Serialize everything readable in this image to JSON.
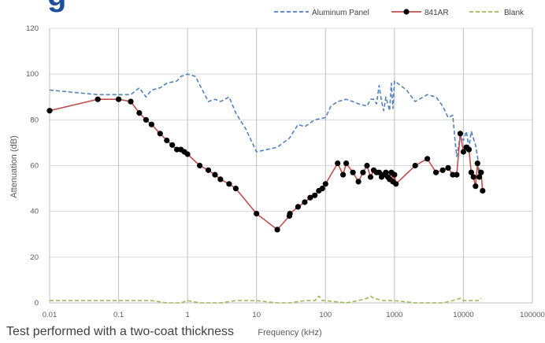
{
  "heading_fragment": "g",
  "caption": "Test performed with a two-coat thickness",
  "colors": {
    "aluminum": "#4f81bd",
    "ar841": "#c0504d",
    "marker": "#000000",
    "blank": "#9bbb59",
    "grid": "#d9d9d9"
  },
  "chart_data": {
    "type": "line",
    "title": "",
    "xlabel": "Frequency (kHz)",
    "ylabel": "Attenuation (dB)",
    "xscale": "log",
    "xlim": [
      0.01,
      100000
    ],
    "ylim": [
      0,
      120
    ],
    "x_ticks": [
      "0.01",
      "0.1",
      "1",
      "10",
      "100",
      "1000",
      "10000",
      "100000"
    ],
    "y_ticks": [
      "0",
      "20",
      "40",
      "60",
      "80",
      "100",
      "120"
    ],
    "grid": "vertical and horizontal",
    "legend_position": "top-right",
    "legend": [
      "Aluminum Panel",
      "841AR",
      "Blank"
    ],
    "series": [
      {
        "name": "Aluminum Panel",
        "style": "dashed",
        "points": [
          [
            0.01,
            93
          ],
          [
            0.05,
            91
          ],
          [
            0.1,
            91
          ],
          [
            0.15,
            91
          ],
          [
            0.2,
            94
          ],
          [
            0.25,
            90
          ],
          [
            0.3,
            93
          ],
          [
            0.4,
            94
          ],
          [
            0.5,
            96
          ],
          [
            0.7,
            97
          ],
          [
            0.8,
            99
          ],
          [
            1,
            100
          ],
          [
            1.3,
            99
          ],
          [
            2,
            88
          ],
          [
            2.5,
            89
          ],
          [
            3,
            88
          ],
          [
            4,
            90
          ],
          [
            5,
            83
          ],
          [
            7,
            76
          ],
          [
            10,
            66
          ],
          [
            20,
            68
          ],
          [
            30,
            72
          ],
          [
            40,
            78
          ],
          [
            50,
            77
          ],
          [
            70,
            80
          ],
          [
            100,
            81
          ],
          [
            120,
            86
          ],
          [
            150,
            88
          ],
          [
            200,
            89
          ],
          [
            250,
            88
          ],
          [
            300,
            87
          ],
          [
            400,
            86
          ],
          [
            450,
            89
          ],
          [
            500,
            89
          ],
          [
            550,
            87
          ],
          [
            600,
            95
          ],
          [
            650,
            88
          ],
          [
            700,
            84
          ],
          [
            750,
            90
          ],
          [
            800,
            87
          ],
          [
            850,
            84
          ],
          [
            900,
            96
          ],
          [
            950,
            85
          ],
          [
            1000,
            97
          ],
          [
            1500,
            93
          ],
          [
            2000,
            88
          ],
          [
            3000,
            91
          ],
          [
            4000,
            90
          ],
          [
            5000,
            86
          ],
          [
            6000,
            81
          ],
          [
            7000,
            82
          ],
          [
            7500,
            72
          ],
          [
            8000,
            64
          ],
          [
            9000,
            73
          ],
          [
            10000,
            71
          ],
          [
            11000,
            75
          ],
          [
            12000,
            68
          ],
          [
            13000,
            75
          ],
          [
            15000,
            69
          ],
          [
            16000,
            64
          ],
          [
            17000,
            58
          ],
          [
            18000,
            55
          ]
        ]
      },
      {
        "name": "841AR",
        "style": "solid-markers",
        "points": [
          [
            0.01,
            84
          ],
          [
            0.05,
            89
          ],
          [
            0.1,
            89
          ],
          [
            0.15,
            88
          ],
          [
            0.2,
            83
          ],
          [
            0.25,
            80
          ],
          [
            0.3,
            78
          ],
          [
            0.4,
            74
          ],
          [
            0.5,
            71
          ],
          [
            0.6,
            69
          ],
          [
            0.7,
            67
          ],
          [
            0.8,
            67
          ],
          [
            0.9,
            66
          ],
          [
            1,
            65
          ],
          [
            1.5,
            60
          ],
          [
            2,
            58
          ],
          [
            2.5,
            56
          ],
          [
            3,
            54
          ],
          [
            4,
            52
          ],
          [
            5,
            50
          ],
          [
            10,
            39
          ],
          [
            20,
            32
          ],
          [
            30,
            38
          ],
          [
            30.5,
            39
          ],
          [
            40,
            42
          ],
          [
            50,
            44
          ],
          [
            60,
            46
          ],
          [
            70,
            47
          ],
          [
            80,
            49
          ],
          [
            90,
            50
          ],
          [
            100,
            52
          ],
          [
            150,
            61
          ],
          [
            180,
            56
          ],
          [
            200,
            61
          ],
          [
            250,
            57
          ],
          [
            300,
            53
          ],
          [
            350,
            57
          ],
          [
            400,
            60
          ],
          [
            450,
            55
          ],
          [
            500,
            58
          ],
          [
            550,
            57
          ],
          [
            600,
            57
          ],
          [
            650,
            55
          ],
          [
            700,
            56
          ],
          [
            750,
            57
          ],
          [
            800,
            55
          ],
          [
            850,
            54
          ],
          [
            900,
            57
          ],
          [
            950,
            53
          ],
          [
            1000,
            56
          ],
          [
            1050,
            52
          ],
          [
            2000,
            60
          ],
          [
            3000,
            63
          ],
          [
            4000,
            57
          ],
          [
            5000,
            58
          ],
          [
            6000,
            59
          ],
          [
            7000,
            56
          ],
          [
            8000,
            56
          ],
          [
            9000,
            74
          ],
          [
            10000,
            66
          ],
          [
            11000,
            68
          ],
          [
            12000,
            67
          ],
          [
            13000,
            57
          ],
          [
            14000,
            55
          ],
          [
            15000,
            51
          ],
          [
            16000,
            61
          ],
          [
            17000,
            55
          ],
          [
            18000,
            57
          ],
          [
            19000,
            49
          ]
        ]
      },
      {
        "name": "Blank",
        "style": "dashed",
        "points": [
          [
            0.01,
            1
          ],
          [
            0.3,
            1
          ],
          [
            0.5,
            0
          ],
          [
            0.8,
            0
          ],
          [
            1,
            1
          ],
          [
            1.5,
            0
          ],
          [
            3,
            0
          ],
          [
            5,
            1
          ],
          [
            10,
            1
          ],
          [
            20,
            0
          ],
          [
            30,
            0
          ],
          [
            50,
            1
          ],
          [
            70,
            1
          ],
          [
            80,
            3
          ],
          [
            90,
            1
          ],
          [
            100,
            1
          ],
          [
            200,
            0
          ],
          [
            300,
            1
          ],
          [
            400,
            2
          ],
          [
            450,
            3
          ],
          [
            500,
            2
          ],
          [
            700,
            1
          ],
          [
            1000,
            1
          ],
          [
            2000,
            0
          ],
          [
            5000,
            0
          ],
          [
            7000,
            1
          ],
          [
            9000,
            2
          ],
          [
            10000,
            1
          ],
          [
            15000,
            1
          ],
          [
            17000,
            1
          ],
          [
            18000,
            2
          ]
        ]
      }
    ]
  }
}
